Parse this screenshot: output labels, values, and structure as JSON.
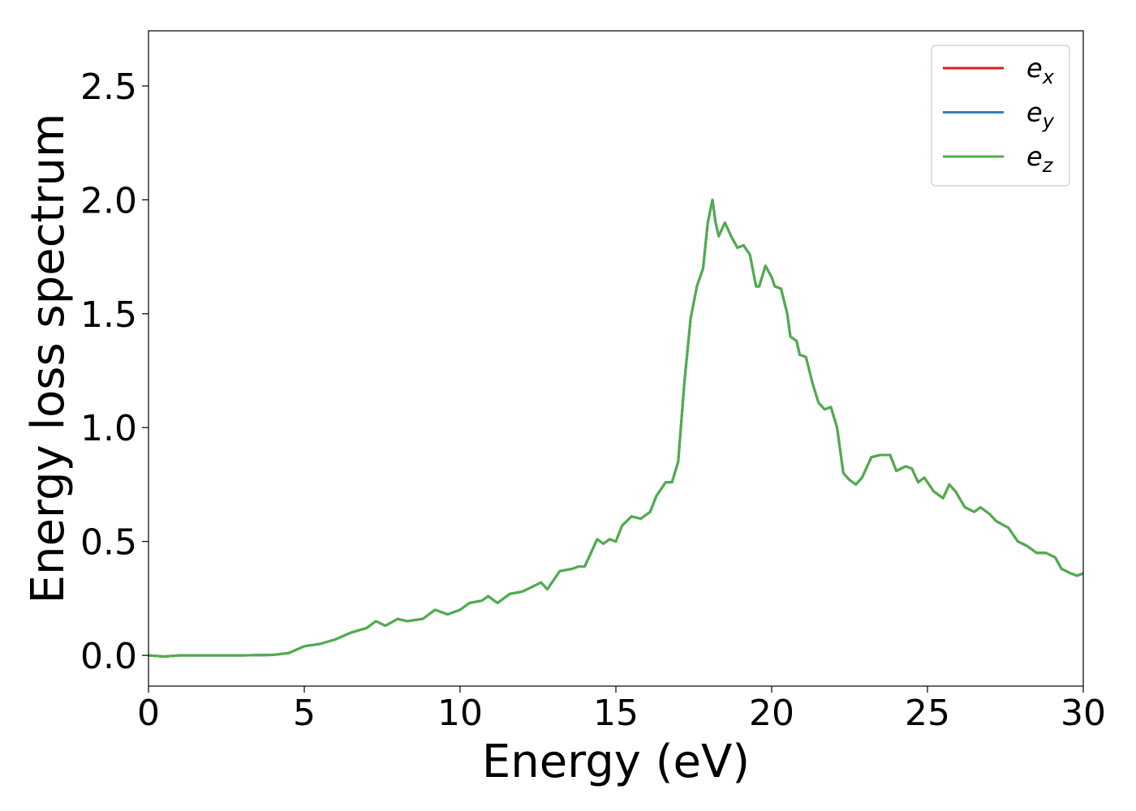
{
  "chart_data": {
    "type": "line",
    "xlabel": "Energy (eV)",
    "ylabel": "Energy loss spectrum",
    "x": [
      0,
      0.5,
      1,
      2,
      3,
      4,
      4.5,
      5,
      5.5,
      6,
      6.5,
      7,
      7.3,
      7.6,
      8,
      8.3,
      8.8,
      9.2,
      9.6,
      10,
      10.3,
      10.7,
      10.9,
      11.2,
      11.6,
      12,
      12.3,
      12.6,
      12.8,
      13.2,
      13.6,
      13.8,
      14,
      14.2,
      14.4,
      14.6,
      14.8,
      15,
      15.2,
      15.5,
      15.8,
      16.1,
      16.3,
      16.6,
      16.8,
      17,
      17.2,
      17.4,
      17.6,
      17.8,
      17.95,
      18.1,
      18.2,
      18.3,
      18.5,
      18.7,
      18.9,
      19.1,
      19.3,
      19.5,
      19.6,
      19.8,
      20,
      20.1,
      20.3,
      20.5,
      20.6,
      20.8,
      20.9,
      21.1,
      21.3,
      21.5,
      21.7,
      21.9,
      22.1,
      22.3,
      22.5,
      22.7,
      22.9,
      23.2,
      23.5,
      23.8,
      24,
      24.3,
      24.5,
      24.7,
      24.9,
      25.2,
      25.5,
      25.7,
      25.9,
      26.2,
      26.5,
      26.7,
      27,
      27.2,
      27.6,
      27.9,
      28.2,
      28.5,
      28.8,
      29.1,
      29.3,
      29.6,
      29.8,
      30
    ],
    "series": [
      {
        "name": "ex",
        "color": "#e41a1c",
        "values": [
          0,
          -0.005,
          0,
          0,
          0,
          0.002,
          0.01,
          0.04,
          0.05,
          0.07,
          0.1,
          0.12,
          0.15,
          0.13,
          0.16,
          0.15,
          0.16,
          0.2,
          0.18,
          0.2,
          0.23,
          0.24,
          0.26,
          0.23,
          0.27,
          0.28,
          0.3,
          0.32,
          0.29,
          0.37,
          0.38,
          0.39,
          0.39,
          0.45,
          0.51,
          0.49,
          0.51,
          0.5,
          0.57,
          0.61,
          0.6,
          0.63,
          0.7,
          0.76,
          0.76,
          0.85,
          1.2,
          1.48,
          1.62,
          1.7,
          1.9,
          2.0,
          1.9,
          1.84,
          1.9,
          1.84,
          1.79,
          1.8,
          1.76,
          1.62,
          1.62,
          1.71,
          1.66,
          1.62,
          1.61,
          1.5,
          1.4,
          1.38,
          1.32,
          1.31,
          1.2,
          1.11,
          1.08,
          1.09,
          1.0,
          0.8,
          0.77,
          0.75,
          0.78,
          0.87,
          0.88,
          0.88,
          0.81,
          0.83,
          0.82,
          0.76,
          0.78,
          0.72,
          0.69,
          0.75,
          0.72,
          0.65,
          0.63,
          0.65,
          0.62,
          0.59,
          0.56,
          0.5,
          0.48,
          0.45,
          0.45,
          0.43,
          0.38,
          0.36,
          0.35,
          0.36
        ]
      },
      {
        "name": "ey",
        "color": "#377eb8",
        "values": [
          0,
          -0.005,
          0,
          0,
          0,
          0.002,
          0.01,
          0.04,
          0.05,
          0.07,
          0.1,
          0.12,
          0.15,
          0.13,
          0.16,
          0.15,
          0.16,
          0.2,
          0.18,
          0.2,
          0.23,
          0.24,
          0.26,
          0.23,
          0.27,
          0.28,
          0.3,
          0.32,
          0.29,
          0.37,
          0.38,
          0.39,
          0.39,
          0.45,
          0.51,
          0.49,
          0.51,
          0.5,
          0.57,
          0.61,
          0.6,
          0.63,
          0.7,
          0.76,
          0.76,
          0.85,
          1.2,
          1.48,
          1.62,
          1.7,
          1.9,
          2.0,
          1.9,
          1.84,
          1.9,
          1.84,
          1.79,
          1.8,
          1.76,
          1.62,
          1.62,
          1.71,
          1.66,
          1.62,
          1.61,
          1.5,
          1.4,
          1.38,
          1.32,
          1.31,
          1.2,
          1.11,
          1.08,
          1.09,
          1.0,
          0.8,
          0.77,
          0.75,
          0.78,
          0.87,
          0.88,
          0.88,
          0.81,
          0.83,
          0.82,
          0.76,
          0.78,
          0.72,
          0.69,
          0.75,
          0.72,
          0.65,
          0.63,
          0.65,
          0.62,
          0.59,
          0.56,
          0.5,
          0.48,
          0.45,
          0.45,
          0.43,
          0.38,
          0.36,
          0.35,
          0.36
        ]
      },
      {
        "name": "ez",
        "color": "#4daf4a",
        "values": [
          0,
          -0.005,
          0,
          0,
          0,
          0.002,
          0.01,
          0.04,
          0.05,
          0.07,
          0.1,
          0.12,
          0.15,
          0.13,
          0.16,
          0.15,
          0.16,
          0.2,
          0.18,
          0.2,
          0.23,
          0.24,
          0.26,
          0.23,
          0.27,
          0.28,
          0.3,
          0.32,
          0.29,
          0.37,
          0.38,
          0.39,
          0.39,
          0.45,
          0.51,
          0.49,
          0.51,
          0.5,
          0.57,
          0.61,
          0.6,
          0.63,
          0.7,
          0.76,
          0.76,
          0.85,
          1.2,
          1.48,
          1.62,
          1.7,
          1.9,
          2.0,
          1.9,
          1.84,
          1.9,
          1.84,
          1.79,
          1.8,
          1.76,
          1.62,
          1.62,
          1.71,
          1.66,
          1.62,
          1.61,
          1.5,
          1.4,
          1.38,
          1.32,
          1.31,
          1.2,
          1.11,
          1.08,
          1.09,
          1.0,
          0.8,
          0.77,
          0.75,
          0.78,
          0.87,
          0.88,
          0.88,
          0.81,
          0.83,
          0.82,
          0.76,
          0.78,
          0.72,
          0.69,
          0.75,
          0.72,
          0.65,
          0.63,
          0.65,
          0.62,
          0.59,
          0.56,
          0.5,
          0.48,
          0.45,
          0.45,
          0.43,
          0.38,
          0.36,
          0.35,
          0.36
        ]
      }
    ],
    "xlim": [
      0,
      30
    ],
    "xticks": [
      0,
      5,
      10,
      15,
      20,
      25,
      30
    ],
    "ylim": [
      -0.135,
      2.742
    ],
    "yticks": [
      {
        "value": 0,
        "label": "0.0"
      },
      0.5,
      {
        "value": 1,
        "label": "1.0"
      },
      1.5,
      {
        "value": 2,
        "label": "2.0"
      },
      2.5
    ],
    "legend": "upper right",
    "grid": false
  }
}
